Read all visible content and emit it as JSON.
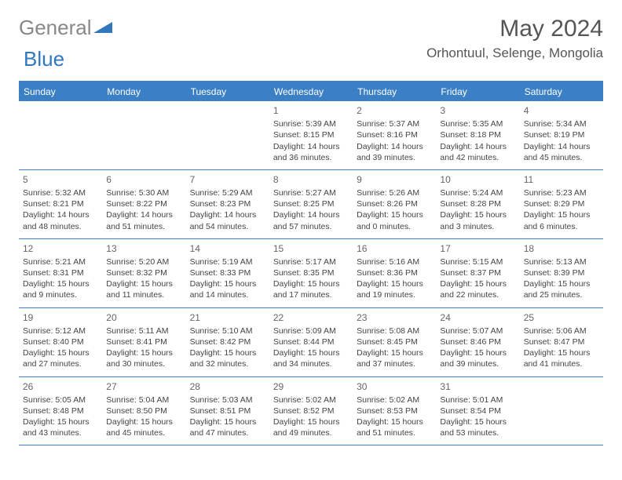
{
  "logo": {
    "part1": "General",
    "part2": "Blue"
  },
  "title": "May 2024",
  "location": "Orhontuul, Selenge, Mongolia",
  "colors": {
    "header_bg": "#3b7fc4",
    "header_text": "#ffffff",
    "border": "#3b7fc4",
    "body_text": "#444444",
    "title_text": "#555555",
    "logo_gray": "#888888",
    "logo_blue": "#2f78bd"
  },
  "weekdays": [
    "Sunday",
    "Monday",
    "Tuesday",
    "Wednesday",
    "Thursday",
    "Friday",
    "Saturday"
  ],
  "weeks": [
    [
      null,
      null,
      null,
      {
        "n": "1",
        "sr": "5:39 AM",
        "ss": "8:15 PM",
        "dl": "14 hours and 36 minutes."
      },
      {
        "n": "2",
        "sr": "5:37 AM",
        "ss": "8:16 PM",
        "dl": "14 hours and 39 minutes."
      },
      {
        "n": "3",
        "sr": "5:35 AM",
        "ss": "8:18 PM",
        "dl": "14 hours and 42 minutes."
      },
      {
        "n": "4",
        "sr": "5:34 AM",
        "ss": "8:19 PM",
        "dl": "14 hours and 45 minutes."
      }
    ],
    [
      {
        "n": "5",
        "sr": "5:32 AM",
        "ss": "8:21 PM",
        "dl": "14 hours and 48 minutes."
      },
      {
        "n": "6",
        "sr": "5:30 AM",
        "ss": "8:22 PM",
        "dl": "14 hours and 51 minutes."
      },
      {
        "n": "7",
        "sr": "5:29 AM",
        "ss": "8:23 PM",
        "dl": "14 hours and 54 minutes."
      },
      {
        "n": "8",
        "sr": "5:27 AM",
        "ss": "8:25 PM",
        "dl": "14 hours and 57 minutes."
      },
      {
        "n": "9",
        "sr": "5:26 AM",
        "ss": "8:26 PM",
        "dl": "15 hours and 0 minutes."
      },
      {
        "n": "10",
        "sr": "5:24 AM",
        "ss": "8:28 PM",
        "dl": "15 hours and 3 minutes."
      },
      {
        "n": "11",
        "sr": "5:23 AM",
        "ss": "8:29 PM",
        "dl": "15 hours and 6 minutes."
      }
    ],
    [
      {
        "n": "12",
        "sr": "5:21 AM",
        "ss": "8:31 PM",
        "dl": "15 hours and 9 minutes."
      },
      {
        "n": "13",
        "sr": "5:20 AM",
        "ss": "8:32 PM",
        "dl": "15 hours and 11 minutes."
      },
      {
        "n": "14",
        "sr": "5:19 AM",
        "ss": "8:33 PM",
        "dl": "15 hours and 14 minutes."
      },
      {
        "n": "15",
        "sr": "5:17 AM",
        "ss": "8:35 PM",
        "dl": "15 hours and 17 minutes."
      },
      {
        "n": "16",
        "sr": "5:16 AM",
        "ss": "8:36 PM",
        "dl": "15 hours and 19 minutes."
      },
      {
        "n": "17",
        "sr": "5:15 AM",
        "ss": "8:37 PM",
        "dl": "15 hours and 22 minutes."
      },
      {
        "n": "18",
        "sr": "5:13 AM",
        "ss": "8:39 PM",
        "dl": "15 hours and 25 minutes."
      }
    ],
    [
      {
        "n": "19",
        "sr": "5:12 AM",
        "ss": "8:40 PM",
        "dl": "15 hours and 27 minutes."
      },
      {
        "n": "20",
        "sr": "5:11 AM",
        "ss": "8:41 PM",
        "dl": "15 hours and 30 minutes."
      },
      {
        "n": "21",
        "sr": "5:10 AM",
        "ss": "8:42 PM",
        "dl": "15 hours and 32 minutes."
      },
      {
        "n": "22",
        "sr": "5:09 AM",
        "ss": "8:44 PM",
        "dl": "15 hours and 34 minutes."
      },
      {
        "n": "23",
        "sr": "5:08 AM",
        "ss": "8:45 PM",
        "dl": "15 hours and 37 minutes."
      },
      {
        "n": "24",
        "sr": "5:07 AM",
        "ss": "8:46 PM",
        "dl": "15 hours and 39 minutes."
      },
      {
        "n": "25",
        "sr": "5:06 AM",
        "ss": "8:47 PM",
        "dl": "15 hours and 41 minutes."
      }
    ],
    [
      {
        "n": "26",
        "sr": "5:05 AM",
        "ss": "8:48 PM",
        "dl": "15 hours and 43 minutes."
      },
      {
        "n": "27",
        "sr": "5:04 AM",
        "ss": "8:50 PM",
        "dl": "15 hours and 45 minutes."
      },
      {
        "n": "28",
        "sr": "5:03 AM",
        "ss": "8:51 PM",
        "dl": "15 hours and 47 minutes."
      },
      {
        "n": "29",
        "sr": "5:02 AM",
        "ss": "8:52 PM",
        "dl": "15 hours and 49 minutes."
      },
      {
        "n": "30",
        "sr": "5:02 AM",
        "ss": "8:53 PM",
        "dl": "15 hours and 51 minutes."
      },
      {
        "n": "31",
        "sr": "5:01 AM",
        "ss": "8:54 PM",
        "dl": "15 hours and 53 minutes."
      },
      null
    ]
  ],
  "labels": {
    "sunrise": "Sunrise:",
    "sunset": "Sunset:",
    "daylight": "Daylight:"
  }
}
